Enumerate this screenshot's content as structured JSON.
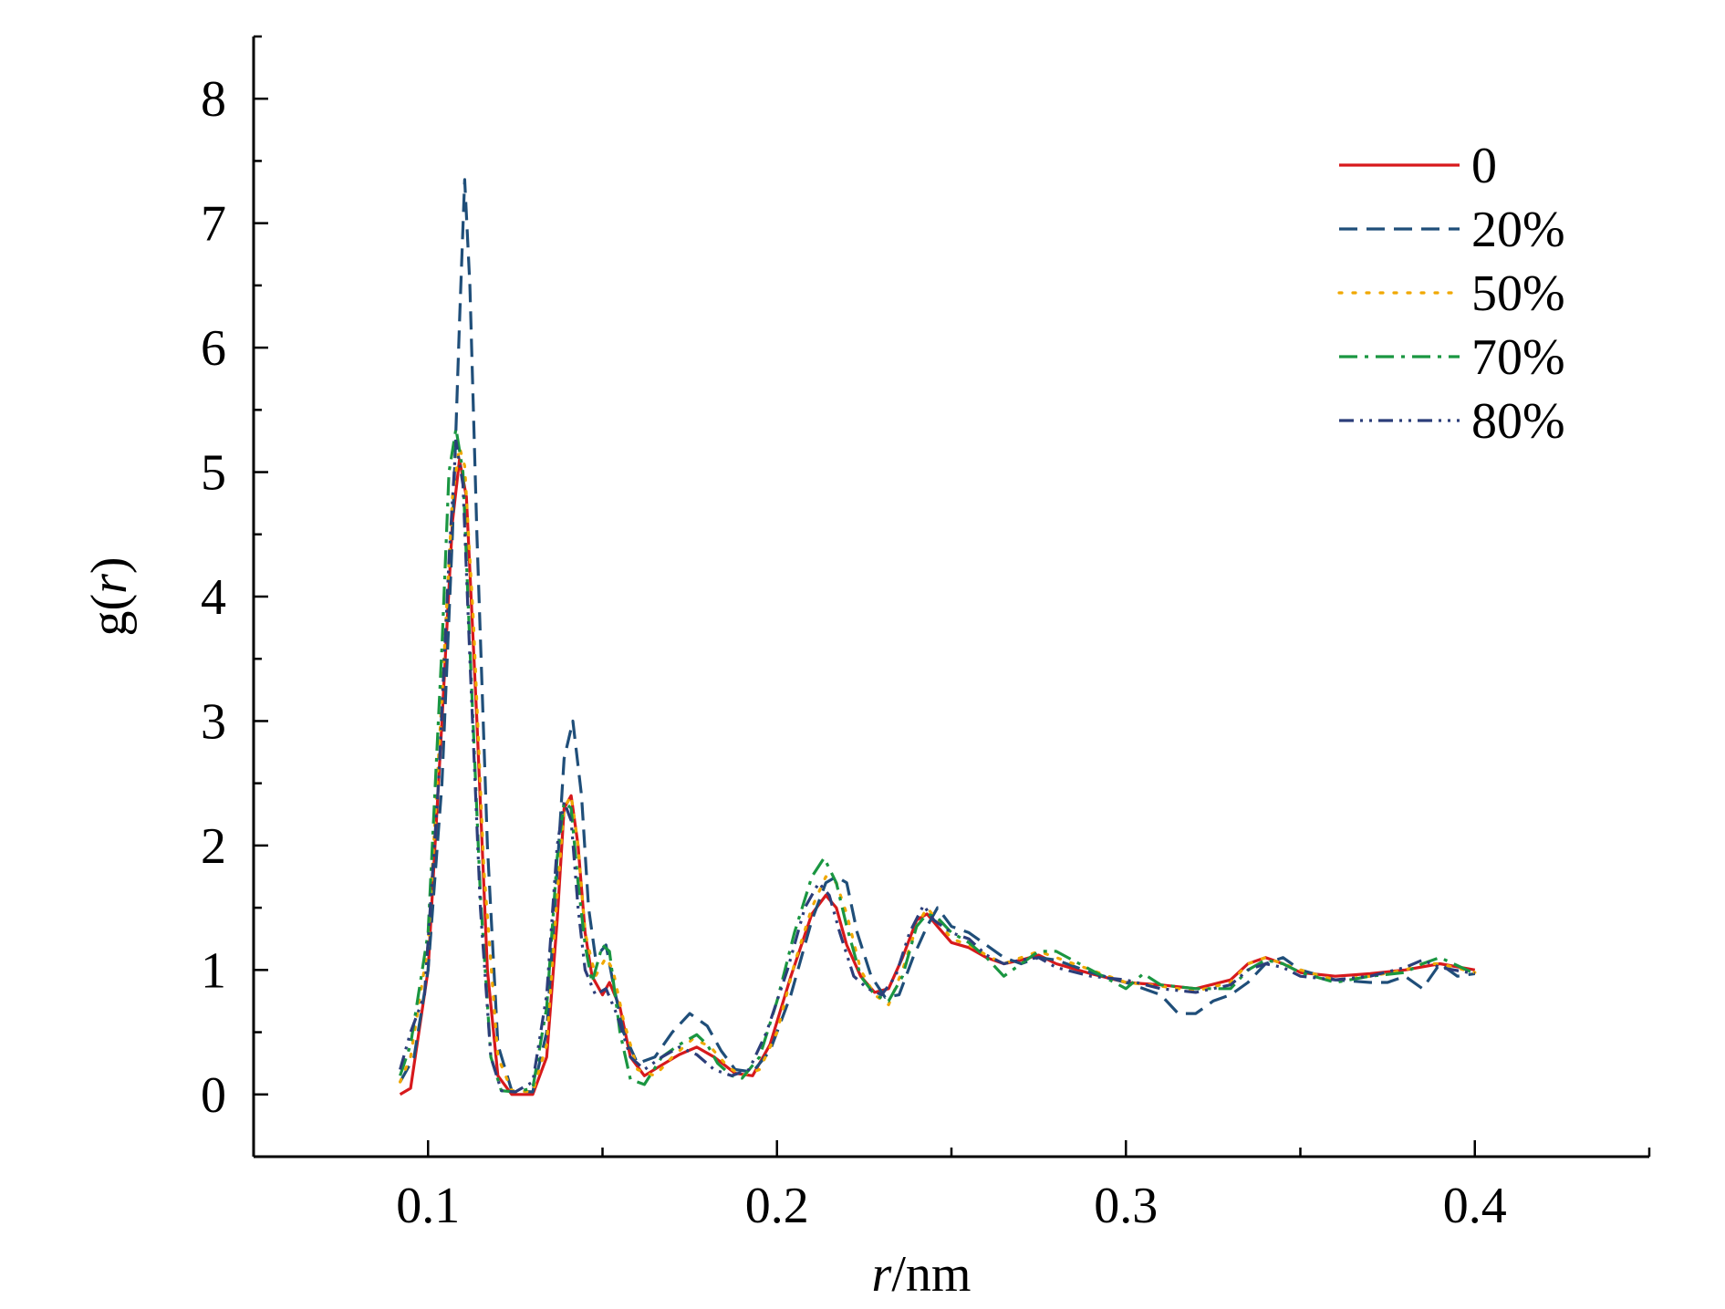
{
  "chart_data": {
    "type": "line",
    "xlabel": {
      "italic": "r",
      "rest": "/nm"
    },
    "ylabel": {
      "pre": "g(",
      "italic": "r",
      "post": ")"
    },
    "xlim": [
      0.05,
      0.45
    ],
    "ylim": [
      -0.5,
      8.5
    ],
    "xticks_major": [
      0.1,
      0.2,
      0.3,
      0.4
    ],
    "xticks_minor": [
      0.05,
      0.15,
      0.25,
      0.35,
      0.45
    ],
    "xtick_labels": [
      "0.1",
      "0.2",
      "0.3",
      "0.4"
    ],
    "yticks_major": [
      0,
      1,
      2,
      3,
      4,
      5,
      6,
      7,
      8
    ],
    "ytick_labels": [
      "0",
      "1",
      "2",
      "3",
      "4",
      "5",
      "6",
      "7",
      "8"
    ],
    "grid": false,
    "legend_position": "top-right",
    "series": [
      {
        "name": "0",
        "color": "#d7191c",
        "dash": "solid",
        "x": [
          0.092,
          0.095,
          0.1,
          0.104,
          0.107,
          0.109,
          0.111,
          0.114,
          0.117,
          0.12,
          0.124,
          0.13,
          0.134,
          0.137,
          0.139,
          0.141,
          0.143,
          0.145,
          0.147,
          0.15,
          0.152,
          0.155,
          0.158,
          0.162,
          0.166,
          0.172,
          0.177,
          0.182,
          0.188,
          0.193,
          0.198,
          0.204,
          0.21,
          0.214,
          0.217,
          0.22,
          0.224,
          0.228,
          0.232,
          0.236,
          0.24,
          0.243,
          0.246,
          0.25,
          0.255,
          0.26,
          0.265,
          0.27,
          0.275,
          0.28,
          0.29,
          0.3,
          0.31,
          0.32,
          0.33,
          0.335,
          0.34,
          0.345,
          0.35,
          0.36,
          0.37,
          0.38,
          0.39,
          0.4
        ],
        "y": [
          0.0,
          0.05,
          1.0,
          3.0,
          4.6,
          5.1,
          4.8,
          3.0,
          1.0,
          0.15,
          0.0,
          0.0,
          0.3,
          1.4,
          2.3,
          2.4,
          2.0,
          1.3,
          0.95,
          0.8,
          0.9,
          0.7,
          0.3,
          0.15,
          0.22,
          0.32,
          0.38,
          0.3,
          0.17,
          0.15,
          0.4,
          0.95,
          1.45,
          1.6,
          1.5,
          1.2,
          0.95,
          0.82,
          0.85,
          1.1,
          1.4,
          1.45,
          1.35,
          1.22,
          1.18,
          1.1,
          1.05,
          1.08,
          1.12,
          1.05,
          0.97,
          0.9,
          0.88,
          0.85,
          0.92,
          1.05,
          1.1,
          1.05,
          0.98,
          0.95,
          0.97,
          1.0,
          1.05,
          1.0
        ]
      },
      {
        "name": "20%",
        "color": "#1f4e79",
        "dash": "dashed",
        "x": [
          0.092,
          0.096,
          0.1,
          0.104,
          0.107,
          0.109,
          0.1105,
          0.112,
          0.114,
          0.117,
          0.12,
          0.124,
          0.13,
          0.134,
          0.137,
          0.139,
          0.1415,
          0.144,
          0.146,
          0.148,
          0.151,
          0.153,
          0.156,
          0.16,
          0.165,
          0.17,
          0.175,
          0.18,
          0.184,
          0.188,
          0.193,
          0.198,
          0.204,
          0.21,
          0.214,
          0.217,
          0.22,
          0.223,
          0.227,
          0.231,
          0.235,
          0.239,
          0.243,
          0.246,
          0.25,
          0.255,
          0.26,
          0.265,
          0.27,
          0.275,
          0.28,
          0.29,
          0.3,
          0.31,
          0.315,
          0.32,
          0.325,
          0.33,
          0.335,
          0.34,
          0.345,
          0.35,
          0.36,
          0.37,
          0.375,
          0.38,
          0.385,
          0.39,
          0.395,
          0.4
        ],
        "y": [
          0.1,
          0.3,
          1.0,
          2.5,
          4.5,
          6.2,
          7.35,
          6.5,
          4.5,
          2.0,
          0.4,
          0.03,
          0.02,
          0.5,
          1.8,
          2.7,
          3.0,
          2.4,
          1.5,
          1.1,
          1.2,
          0.9,
          0.5,
          0.25,
          0.3,
          0.5,
          0.65,
          0.55,
          0.35,
          0.2,
          0.18,
          0.35,
          0.8,
          1.4,
          1.7,
          1.75,
          1.7,
          1.3,
          0.95,
          0.78,
          0.8,
          1.1,
          1.35,
          1.5,
          1.35,
          1.3,
          1.2,
          1.1,
          1.05,
          1.1,
          1.08,
          0.98,
          0.9,
          0.8,
          0.65,
          0.65,
          0.75,
          0.8,
          0.9,
          1.05,
          1.1,
          1.0,
          0.92,
          0.9,
          0.9,
          0.95,
          0.85,
          1.05,
          0.95,
          0.97
        ]
      },
      {
        "name": "50%",
        "color": "#f0a800",
        "dash": "dotted",
        "x": [
          0.092,
          0.095,
          0.1,
          0.104,
          0.107,
          0.109,
          0.1105,
          0.113,
          0.116,
          0.12,
          0.124,
          0.13,
          0.134,
          0.137,
          0.139,
          0.141,
          0.143,
          0.145,
          0.148,
          0.151,
          0.153,
          0.156,
          0.16,
          0.165,
          0.17,
          0.176,
          0.181,
          0.186,
          0.19,
          0.195,
          0.2,
          0.205,
          0.21,
          0.214,
          0.217,
          0.22,
          0.224,
          0.228,
          0.232,
          0.236,
          0.24,
          0.243,
          0.246,
          0.25,
          0.255,
          0.26,
          0.265,
          0.27,
          0.275,
          0.28,
          0.29,
          0.3,
          0.31,
          0.32,
          0.33,
          0.335,
          0.34,
          0.345,
          0.35,
          0.36,
          0.37,
          0.38,
          0.385,
          0.39,
          0.4
        ],
        "y": [
          0.1,
          0.3,
          1.2,
          3.2,
          4.8,
          5.2,
          5.05,
          3.8,
          1.8,
          0.3,
          0.03,
          0.02,
          0.4,
          1.6,
          2.3,
          2.4,
          2.0,
          1.3,
          0.95,
          1.1,
          1.0,
          0.6,
          0.2,
          0.15,
          0.3,
          0.45,
          0.38,
          0.22,
          0.15,
          0.2,
          0.5,
          1.05,
          1.5,
          1.75,
          1.7,
          1.45,
          1.0,
          0.8,
          0.72,
          1.0,
          1.35,
          1.5,
          1.4,
          1.25,
          1.2,
          1.12,
          1.05,
          1.1,
          1.15,
          1.1,
          1.0,
          0.9,
          0.87,
          0.83,
          0.9,
          1.05,
          1.1,
          1.05,
          1.0,
          0.92,
          0.95,
          1.0,
          1.05,
          1.05,
          0.98
        ]
      },
      {
        "name": "70%",
        "color": "#1a9641",
        "dash": "dashdot",
        "x": [
          0.092,
          0.095,
          0.1,
          0.104,
          0.106,
          0.108,
          0.11,
          0.112,
          0.115,
          0.118,
          0.121,
          0.125,
          0.13,
          0.134,
          0.137,
          0.139,
          0.141,
          0.143,
          0.145,
          0.147,
          0.15,
          0.152,
          0.155,
          0.158,
          0.162,
          0.167,
          0.172,
          0.177,
          0.18,
          0.183,
          0.187,
          0.19,
          0.195,
          0.2,
          0.205,
          0.21,
          0.2135,
          0.217,
          0.22,
          0.224,
          0.228,
          0.232,
          0.236,
          0.24,
          0.243,
          0.246,
          0.25,
          0.255,
          0.26,
          0.265,
          0.27,
          0.275,
          0.28,
          0.29,
          0.3,
          0.305,
          0.31,
          0.32,
          0.33,
          0.335,
          0.34,
          0.345,
          0.35,
          0.36,
          0.37,
          0.38,
          0.385,
          0.39,
          0.4
        ],
        "y": [
          0.15,
          0.4,
          1.3,
          3.6,
          5.0,
          5.35,
          5.0,
          3.6,
          1.6,
          0.3,
          0.03,
          0.02,
          0.05,
          0.7,
          1.9,
          2.35,
          2.3,
          1.7,
          1.2,
          0.9,
          1.2,
          1.15,
          0.5,
          0.12,
          0.08,
          0.3,
          0.4,
          0.48,
          0.4,
          0.25,
          0.15,
          0.13,
          0.3,
          0.75,
          1.3,
          1.75,
          1.9,
          1.7,
          1.35,
          0.95,
          0.8,
          0.75,
          0.95,
          1.35,
          1.45,
          1.42,
          1.3,
          1.22,
          1.1,
          0.95,
          1.05,
          1.15,
          1.15,
          1.0,
          0.85,
          0.97,
          0.88,
          0.85,
          0.85,
          1.0,
          1.08,
          1.05,
          0.98,
          0.9,
          0.95,
          0.98,
          1.05,
          1.1,
          0.97
        ]
      },
      {
        "name": "80%",
        "color": "#2c3e7a",
        "dash": "dashdotdot",
        "x": [
          0.092,
          0.095,
          0.099,
          0.103,
          0.106,
          0.108,
          0.11,
          0.112,
          0.115,
          0.118,
          0.121,
          0.125,
          0.13,
          0.134,
          0.137,
          0.139,
          0.141,
          0.143,
          0.145,
          0.148,
          0.151,
          0.154,
          0.158,
          0.162,
          0.167,
          0.172,
          0.177,
          0.182,
          0.187,
          0.192,
          0.197,
          0.203,
          0.208,
          0.212,
          0.215,
          0.218,
          0.222,
          0.226,
          0.23,
          0.234,
          0.238,
          0.242,
          0.245,
          0.25,
          0.255,
          0.26,
          0.265,
          0.27,
          0.275,
          0.28,
          0.29,
          0.3,
          0.31,
          0.32,
          0.33,
          0.335,
          0.34,
          0.345,
          0.35,
          0.36,
          0.37,
          0.38,
          0.385,
          0.39,
          0.4
        ],
        "y": [
          0.2,
          0.5,
          0.8,
          2.5,
          4.3,
          5.25,
          4.9,
          3.5,
          1.5,
          0.3,
          0.03,
          0.02,
          0.1,
          0.8,
          2.0,
          2.35,
          2.2,
          1.5,
          1.0,
          0.8,
          0.85,
          0.65,
          0.3,
          0.2,
          0.3,
          0.38,
          0.32,
          0.2,
          0.15,
          0.2,
          0.5,
          1.0,
          1.5,
          1.7,
          1.6,
          1.3,
          0.95,
          0.85,
          0.8,
          0.95,
          1.3,
          1.52,
          1.4,
          1.3,
          1.25,
          1.12,
          1.05,
          1.08,
          1.1,
          1.02,
          0.95,
          0.92,
          0.85,
          0.82,
          0.88,
          1.0,
          1.05,
          1.02,
          0.95,
          0.92,
          0.95,
          1.02,
          1.08,
          1.02,
          0.97
        ]
      }
    ]
  }
}
